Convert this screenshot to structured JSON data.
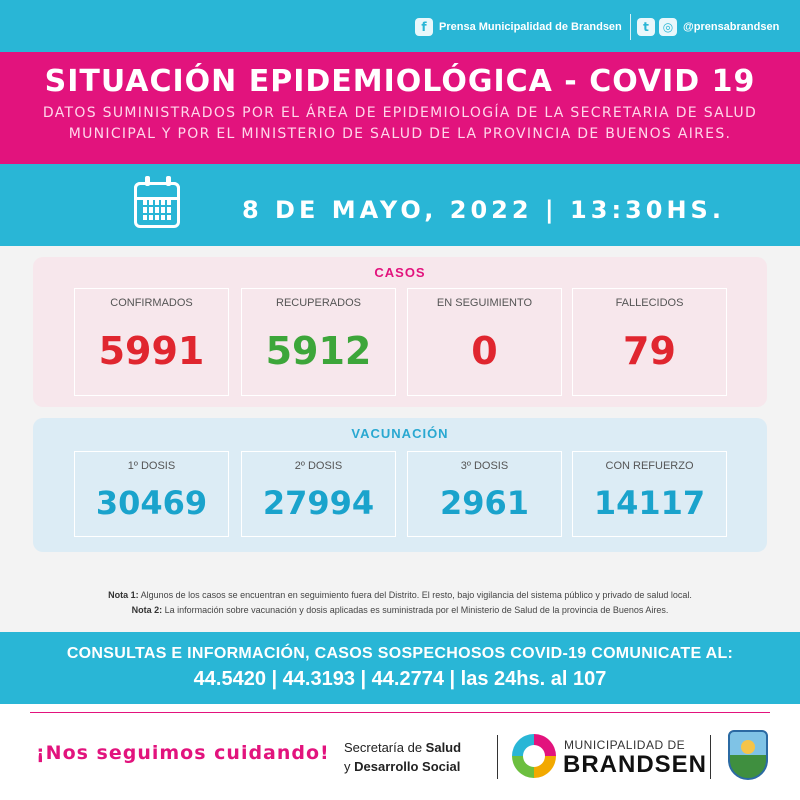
{
  "social": {
    "facebook_icon": "f",
    "facebook_label": "Prensa Municipalidad de Brandsen",
    "twitter_icon": "t",
    "instagram_icon": "◎",
    "handle": "@prensabrandsen"
  },
  "header": {
    "title": "SITUACIÓN EPIDEMIOLÓGICA - COVID 19",
    "subtitle_line1": "DATOS SUMINISTRADOS POR EL ÁREA DE EPIDEMIOLOGÍA DE LA SECRETARIA DE SALUD",
    "subtitle_line2": "MUNICIPAL Y POR EL MINISTERIO DE SALUD DE LA PROVINCIA DE BUENOS AIRES."
  },
  "date": {
    "text": "8 DE MAYO, 2022",
    "time": "13:30HS."
  },
  "cases": {
    "title": "CASOS",
    "items": [
      {
        "label": "CONFIRMADOS",
        "value": "5991",
        "color": "#e0262f"
      },
      {
        "label": "RECUPERADOS",
        "value": "5912",
        "color": "#3da63a"
      },
      {
        "label": "EN SEGUIMIENTO",
        "value": "0",
        "color": "#e0262f"
      },
      {
        "label": "FALLECIDOS",
        "value": "79",
        "color": "#e0262f"
      }
    ]
  },
  "vaccination": {
    "title": "VACUNACIÓN",
    "items": [
      {
        "label": "1º DOSIS",
        "value": "30469"
      },
      {
        "label": "2º DOSIS",
        "value": "27994"
      },
      {
        "label": "3º DOSIS",
        "value": "2961"
      },
      {
        "label": "CON REFUERZO",
        "value": "14117"
      }
    ]
  },
  "notes": {
    "note1_label": "Nota 1:",
    "note1_text": "Algunos de los casos se encuentran en seguimiento fuera del Distrito. El resto, bajo vigilancia del sistema público y privado de salud local.",
    "note2_label": "Nota 2:",
    "note2_text": "La información sobre vacunación y dosis aplicadas es suministrada por el Ministerio de Salud de la provincia de Buenos Aires."
  },
  "info": {
    "line1": "CONSULTAS E INFORMACIÓN, CASOS SOSPECHOSOS COVID-19 COMUNICATE AL:",
    "line2": "44.5420 | 44.3193 | 44.2774 | las 24hs. al 107"
  },
  "footer": {
    "slogan": "¡Nos seguimos cuidando!",
    "secretaria_prefix": "Secretaría de",
    "secretaria_bold1": "Salud",
    "secretaria_line2_prefix": "y",
    "secretaria_bold2": "Desarrollo Social",
    "muni_small": "MUNICIPALIDAD DE",
    "muni_big": "BRANDSEN"
  }
}
